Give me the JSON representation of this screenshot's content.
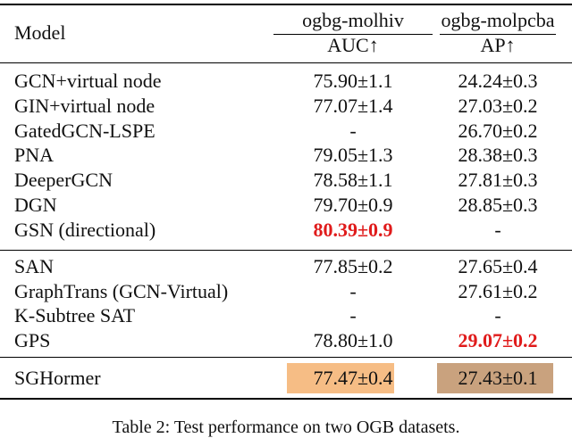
{
  "header": {
    "model": "Model",
    "ds1": "ogbg-molhiv",
    "ds2": "ogbg-molpcba",
    "metric1": "AUC↑",
    "metric2": "AP↑"
  },
  "groups": [
    [
      {
        "model": "GCN+virtual node",
        "molhiv": "75.90±1.1",
        "molpcba": "24.24±0.3"
      },
      {
        "model": "GIN+virtual node",
        "molhiv": "77.07±1.4",
        "molpcba": "27.03±0.2"
      },
      {
        "model": "GatedGCN-LSPE",
        "molhiv": "-",
        "molpcba": "26.70±0.2"
      },
      {
        "model": "PNA",
        "molhiv": "79.05±1.3",
        "molpcba": "28.38±0.3"
      },
      {
        "model": "DeeperGCN",
        "molhiv": "78.58±1.1",
        "molpcba": "27.81±0.3"
      },
      {
        "model": "DGN",
        "molhiv": "79.70±0.9",
        "molpcba": "28.85±0.3"
      },
      {
        "model": "GSN (directional)",
        "molhiv": "80.39±0.9",
        "molpcba": "-"
      }
    ],
    [
      {
        "model": "SAN",
        "molhiv": "77.85±0.2",
        "molpcba": "27.65±0.4"
      },
      {
        "model": "GraphTrans (GCN-Virtual)",
        "molhiv": "-",
        "molpcba": "27.61±0.2"
      },
      {
        "model": "K-Subtree SAT",
        "molhiv": "-",
        "molpcba": "-"
      },
      {
        "model": "GPS",
        "molhiv": "78.80±1.0",
        "molpcba": "29.07±0.2"
      }
    ],
    [
      {
        "model": "SGHormer",
        "molhiv": "77.47±0.4",
        "molpcba": "27.43±0.1"
      }
    ]
  ],
  "caption": "Table 2: Test performance on two OGB datasets.",
  "colors": {
    "best": "#e01b1b",
    "highlight_molhiv": "#f6bd85",
    "highlight_molpcba": "#c9a27e"
  }
}
